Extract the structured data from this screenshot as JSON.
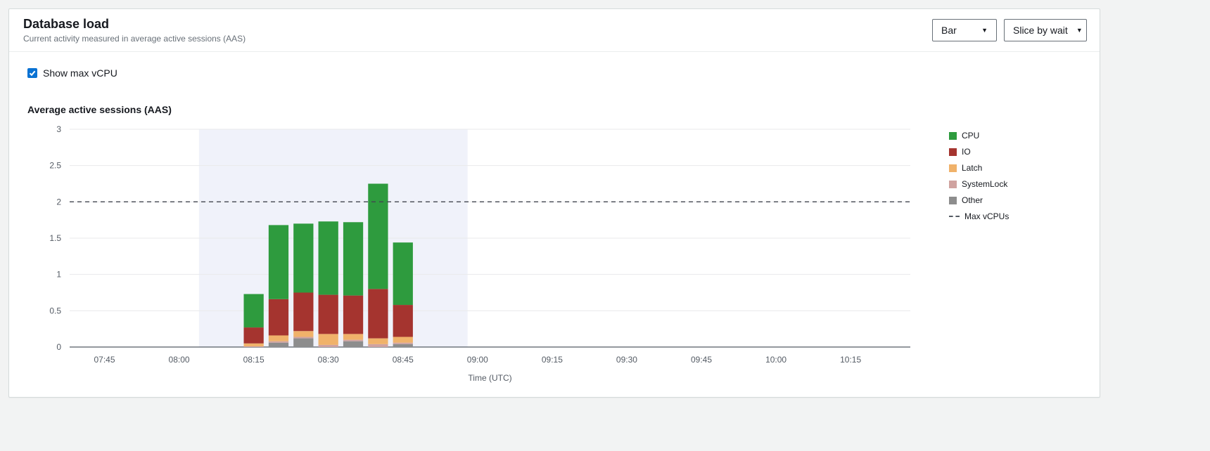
{
  "header": {
    "title": "Database load",
    "subtitle": "Current activity measured in average active sessions (AAS)",
    "chart_type_select": {
      "value": "Bar"
    },
    "slice_select": {
      "value": "Slice by wait"
    }
  },
  "controls": {
    "show_max_vcpu": {
      "label": "Show max vCPU",
      "checked": true,
      "accent_color": "#0972d3"
    }
  },
  "chart_data": {
    "type": "bar",
    "stacked": true,
    "title": "Average active sessions (AAS)",
    "xlabel": "Time (UTC)",
    "ylabel": "",
    "ylim": [
      0,
      3
    ],
    "yticks": [
      0,
      0.5,
      1,
      1.5,
      2,
      2.5,
      3
    ],
    "x_ticks": [
      "07:45",
      "08:00",
      "08:15",
      "08:30",
      "08:45",
      "09:00",
      "09:15",
      "09:30",
      "09:45",
      "10:00",
      "10:15"
    ],
    "x_domain": [
      "07:38",
      "10:27"
    ],
    "bar_width_minutes": 4,
    "grid": true,
    "legend_position": "right",
    "categories": [
      "08:15",
      "08:20",
      "08:25",
      "08:30",
      "08:35",
      "08:40",
      "08:45"
    ],
    "series": [
      {
        "name": "Other",
        "color": "#8d8d8d",
        "values": [
          0,
          0.06,
          0.12,
          0,
          0.08,
          0,
          0.04
        ]
      },
      {
        "name": "SystemLock",
        "color": "#d0a3a0",
        "values": [
          0.01,
          0.02,
          0.02,
          0.03,
          0.02,
          0.04,
          0.02
        ]
      },
      {
        "name": "Latch",
        "color": "#f0b26a",
        "values": [
          0.04,
          0.08,
          0.08,
          0.15,
          0.08,
          0.08,
          0.08
        ]
      },
      {
        "name": "IO",
        "color": "#a5342f",
        "values": [
          0.22,
          0.5,
          0.53,
          0.54,
          0.53,
          0.68,
          0.44
        ]
      },
      {
        "name": "CPU",
        "color": "#2e9b3e",
        "values": [
          0.46,
          1.02,
          0.95,
          1.01,
          1.01,
          1.45,
          0.86
        ]
      }
    ],
    "legend": [
      {
        "label": "CPU",
        "color": "#2e9b3e",
        "type": "swatch"
      },
      {
        "label": "IO",
        "color": "#a5342f",
        "type": "swatch"
      },
      {
        "label": "Latch",
        "color": "#f0b26a",
        "type": "swatch"
      },
      {
        "label": "SystemLock",
        "color": "#d0a3a0",
        "type": "swatch"
      },
      {
        "label": "Other",
        "color": "#8d8d8d",
        "type": "swatch"
      },
      {
        "label": "Max vCPUs",
        "color": "#545b64",
        "type": "dashed-line"
      }
    ],
    "max_vcpus": 2,
    "selection_region": {
      "start": "08:04",
      "end": "08:58"
    },
    "colors": {
      "selection": "#f0f2fa",
      "grid": "#e9eaeb",
      "axis": "#545b64",
      "text": "#545b64",
      "max_line": "#424650"
    }
  }
}
